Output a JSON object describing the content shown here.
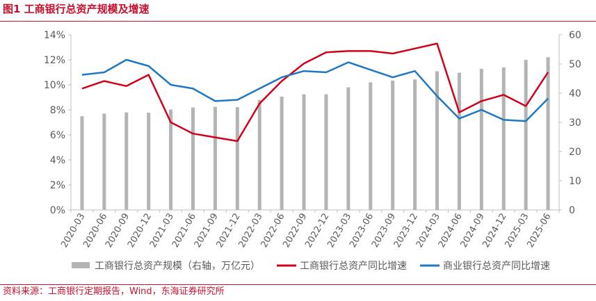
{
  "header": {
    "title": "图1 工商银行总资产规模及增速"
  },
  "footer": {
    "source": "资料来源：工商银行定期报告，Wind，东海证券研究所"
  },
  "colors": {
    "bars": "#b4b4b4",
    "icbc_line": "#d0021b",
    "bank_line": "#1f77c4",
    "title_red": "#c8102e"
  },
  "chart_data": {
    "type": "bar+line",
    "categories": [
      "2020-03",
      "2020-06",
      "2020-09",
      "2020-12",
      "2021-03",
      "2021-06",
      "2021-09",
      "2021-12",
      "2022-03",
      "2022-06",
      "2022-09",
      "2022-12",
      "2023-03",
      "2023-06",
      "2023-09",
      "2023-12",
      "2024-03",
      "2024-06",
      "2024-09",
      "2024-12",
      "2025-03",
      "2025-06"
    ],
    "left_axis": {
      "ticks": [
        "0%",
        "2%",
        "4%",
        "6%",
        "8%",
        "10%",
        "12%",
        "14%"
      ],
      "ylim": [
        0,
        14
      ]
    },
    "right_axis": {
      "ticks": [
        "0",
        "10",
        "20",
        "30",
        "40",
        "50",
        "60"
      ],
      "ylim": [
        0,
        60
      ]
    },
    "series": [
      {
        "name": "工商银行总资产规模（右轴，万亿元）",
        "type": "bar",
        "axis": "right",
        "values": [
          32.1,
          33.0,
          33.4,
          33.3,
          34.4,
          35.1,
          35.3,
          35.2,
          37.7,
          38.8,
          39.6,
          39.6,
          42.0,
          43.7,
          44.3,
          44.7,
          47.5,
          47.0,
          48.3,
          48.8,
          51.4,
          52.3
        ]
      },
      {
        "name": "工商银行总资产同比增速",
        "type": "line",
        "axis": "left",
        "values": [
          9.7,
          10.3,
          9.9,
          10.8,
          7.0,
          6.1,
          5.8,
          5.5,
          8.5,
          10.3,
          11.7,
          12.6,
          12.7,
          12.7,
          12.5,
          12.9,
          13.3,
          7.8,
          8.7,
          9.2,
          8.3,
          11.0
        ]
      },
      {
        "name": "商业银行总资产同比增速",
        "type": "line",
        "axis": "left",
        "values": [
          10.8,
          11.0,
          12.0,
          11.5,
          10.0,
          9.7,
          8.7,
          8.8,
          9.7,
          10.6,
          11.1,
          11.0,
          11.8,
          11.2,
          10.6,
          11.1,
          9.1,
          7.3,
          8.0,
          7.2,
          7.1,
          8.9
        ]
      }
    ]
  }
}
